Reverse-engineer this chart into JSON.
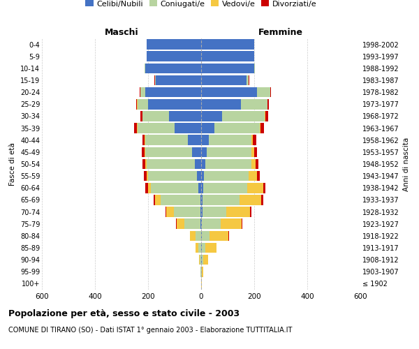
{
  "age_groups": [
    "100+",
    "95-99",
    "90-94",
    "85-89",
    "80-84",
    "75-79",
    "70-74",
    "65-69",
    "60-64",
    "55-59",
    "50-54",
    "45-49",
    "40-44",
    "35-39",
    "30-34",
    "25-29",
    "20-24",
    "15-19",
    "10-14",
    "5-9",
    "0-4"
  ],
  "birth_years": [
    "≤ 1902",
    "1903-1907",
    "1908-1912",
    "1913-1917",
    "1918-1922",
    "1923-1927",
    "1928-1932",
    "1933-1937",
    "1938-1942",
    "1943-1947",
    "1948-1952",
    "1953-1957",
    "1958-1962",
    "1963-1967",
    "1968-1972",
    "1973-1977",
    "1978-1982",
    "1983-1987",
    "1988-1992",
    "1993-1997",
    "1998-2002"
  ],
  "males": {
    "celibe": [
      0,
      0,
      0,
      1,
      1,
      2,
      2,
      3,
      10,
      15,
      25,
      35,
      50,
      100,
      120,
      200,
      210,
      170,
      210,
      205,
      205
    ],
    "coniugato": [
      0,
      2,
      5,
      10,
      20,
      60,
      100,
      150,
      180,
      185,
      180,
      175,
      160,
      140,
      100,
      40,
      20,
      5,
      2,
      0,
      0
    ],
    "vedovo": [
      0,
      1,
      3,
      10,
      20,
      30,
      30,
      20,
      10,
      5,
      5,
      3,
      2,
      2,
      1,
      1,
      0,
      0,
      0,
      0,
      0
    ],
    "divorziato": [
      0,
      0,
      0,
      1,
      1,
      2,
      3,
      5,
      10,
      12,
      12,
      10,
      8,
      10,
      8,
      3,
      2,
      1,
      0,
      0,
      0
    ]
  },
  "females": {
    "nubile": [
      0,
      0,
      2,
      2,
      2,
      3,
      5,
      5,
      8,
      10,
      15,
      20,
      30,
      50,
      80,
      150,
      210,
      170,
      200,
      200,
      200
    ],
    "coniugata": [
      0,
      2,
      5,
      15,
      30,
      70,
      90,
      140,
      165,
      170,
      175,
      170,
      160,
      170,
      160,
      100,
      50,
      10,
      2,
      0,
      0
    ],
    "vedova": [
      2,
      5,
      20,
      40,
      70,
      80,
      90,
      80,
      60,
      30,
      15,
      10,
      5,
      3,
      2,
      1,
      1,
      0,
      0,
      0,
      0
    ],
    "divorziata": [
      0,
      0,
      0,
      1,
      2,
      2,
      5,
      8,
      10,
      12,
      12,
      10,
      12,
      15,
      10,
      3,
      2,
      1,
      0,
      0,
      0
    ]
  },
  "colors": {
    "celibe": "#4472C4",
    "coniugato": "#B8D4A0",
    "vedovo": "#F5C842",
    "divorziato": "#CC0000"
  },
  "xlim": 600,
  "title": "Popolazione per età, sesso e stato civile - 2003",
  "subtitle": "COMUNE DI TIRANO (SO) - Dati ISTAT 1° gennaio 2003 - Elaborazione TUTTITALIA.IT",
  "ylabel_left": "Fasce di età",
  "ylabel_right": "Anni di nascita",
  "header_left": "Maschi",
  "header_right": "Femmine",
  "legend_labels": [
    "Celibi/Nubili",
    "Coniugati/e",
    "Vedovi/e",
    "Divorziati/e"
  ],
  "background_color": "#ffffff",
  "grid_color": "#cccccc"
}
